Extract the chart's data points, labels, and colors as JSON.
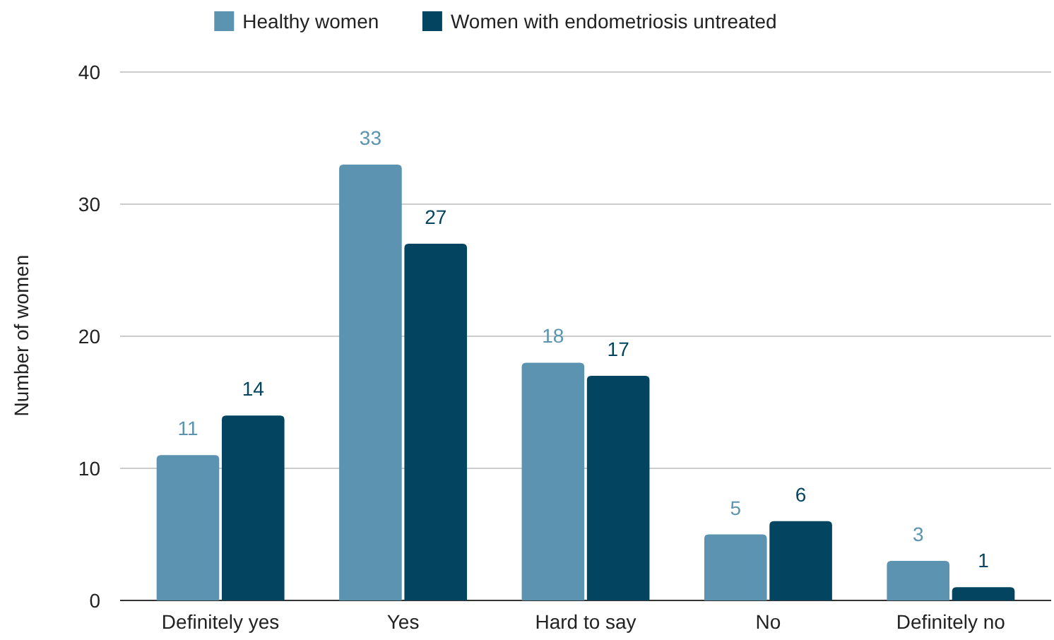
{
  "chart_data": {
    "type": "bar",
    "ylabel": "Number of women",
    "categories": [
      "Definitely yes",
      "Yes",
      "Hard to say",
      "No",
      "Definitely no"
    ],
    "series": [
      {
        "name": "Healthy women",
        "color": "#5b93b0",
        "values": [
          11,
          33,
          18,
          5,
          3
        ]
      },
      {
        "name": "Women with endometriosis untreated",
        "color": "#034561",
        "values": [
          14,
          27,
          17,
          6,
          1
        ]
      }
    ],
    "ylim": [
      0,
      40
    ],
    "yticks": [
      0,
      10,
      20,
      30,
      40
    ],
    "grid": "y",
    "legend": "top",
    "data_labels": true
  }
}
